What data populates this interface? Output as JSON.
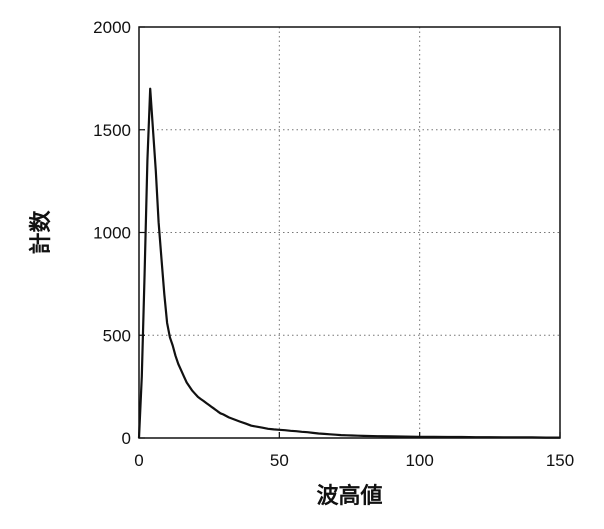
{
  "chart_data": {
    "type": "line",
    "title": "",
    "xlabel": "波高値",
    "ylabel": "計数",
    "xlim": [
      0,
      150
    ],
    "ylim": [
      0,
      2000
    ],
    "xticks": [
      0,
      50,
      100,
      150
    ],
    "yticks": [
      0,
      500,
      1000,
      1500,
      2000
    ],
    "xtick_labels": [
      "0",
      "50",
      "100",
      "150"
    ],
    "ytick_labels": [
      "0",
      "500",
      "1000",
      "1500",
      "2000"
    ],
    "grid": true,
    "series": [
      {
        "x": [
          0,
          1,
          2,
          3,
          4,
          5,
          6,
          7,
          8,
          9,
          10,
          11,
          12,
          13,
          14,
          15,
          16,
          17,
          18,
          19,
          20,
          21,
          22,
          23,
          24,
          25,
          26,
          27,
          28,
          29,
          30,
          32,
          34,
          36,
          38,
          40,
          42,
          44,
          46,
          48,
          50,
          52,
          54,
          56,
          58,
          60,
          62,
          64,
          66,
          68,
          70,
          72,
          74,
          76,
          78,
          80,
          85,
          90,
          95,
          100,
          105,
          110,
          115,
          120,
          125,
          130,
          135,
          140,
          145,
          150
        ],
        "y": [
          0,
          300,
          800,
          1350,
          1700,
          1500,
          1300,
          1050,
          870,
          700,
          560,
          490,
          450,
          400,
          360,
          330,
          300,
          270,
          250,
          230,
          215,
          200,
          190,
          180,
          170,
          160,
          150,
          140,
          130,
          120,
          115,
          100,
          90,
          80,
          70,
          60,
          55,
          50,
          45,
          42,
          40,
          38,
          35,
          33,
          30,
          28,
          25,
          22,
          20,
          18,
          16,
          14,
          13,
          12,
          11,
          10,
          9,
          8,
          7,
          6,
          6,
          5,
          5,
          4,
          4,
          3,
          3,
          3,
          2,
          2
        ]
      }
    ]
  }
}
